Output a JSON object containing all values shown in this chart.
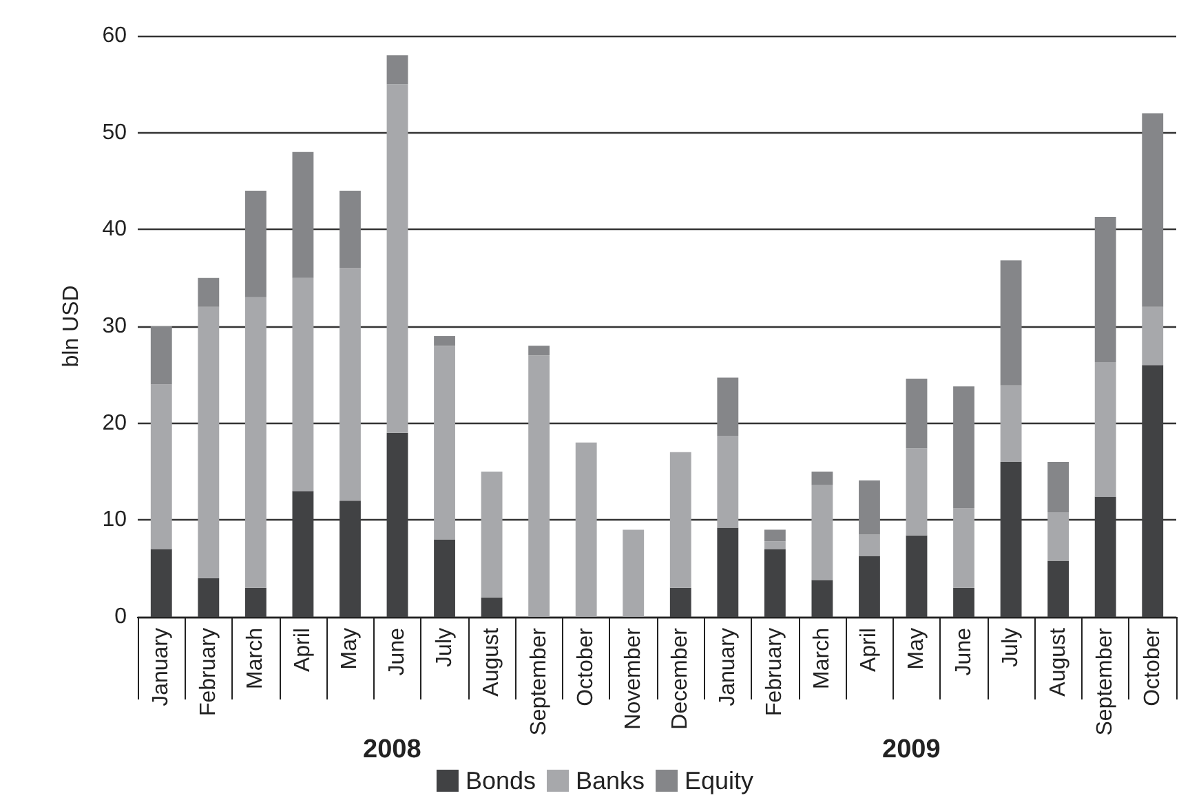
{
  "chart_data": {
    "type": "bar",
    "stacked": true,
    "ylabel": "bln USD",
    "categories": [
      "January",
      "February",
      "March",
      "April",
      "May",
      "June",
      "July",
      "August",
      "September",
      "October",
      "November",
      "December",
      "January",
      "February",
      "March",
      "April",
      "May",
      "June",
      "July",
      "August",
      "September",
      "October"
    ],
    "series": [
      {
        "name": "Bonds",
        "color": "#414244",
        "values": [
          7,
          4,
          3,
          13,
          12,
          19,
          8,
          2,
          0,
          0,
          0,
          3,
          9.2,
          7,
          3.8,
          6.3,
          8.4,
          3,
          16,
          5.8,
          12.4,
          26
        ]
      },
      {
        "name": "Banks",
        "color": "#a7a8ab",
        "values": [
          17,
          28,
          30,
          22,
          24,
          36,
          20,
          13,
          27,
          18,
          9,
          14,
          9.5,
          0.8,
          9.8,
          2.2,
          9,
          8.2,
          7.9,
          5,
          13.9,
          6
        ]
      },
      {
        "name": "Equity",
        "color": "#858689",
        "values": [
          6,
          3,
          11,
          13,
          8,
          3,
          1,
          0,
          1,
          0,
          0,
          0,
          6,
          1.2,
          1.4,
          5.6,
          7.2,
          12.6,
          12.9,
          5.2,
          15,
          20
        ]
      }
    ],
    "ylim": [
      0,
      60
    ],
    "yticks": [
      0,
      10,
      20,
      30,
      40,
      50,
      60
    ],
    "grid": "y",
    "legend": "bottom",
    "annotations": [
      "2008",
      "2009"
    ]
  }
}
